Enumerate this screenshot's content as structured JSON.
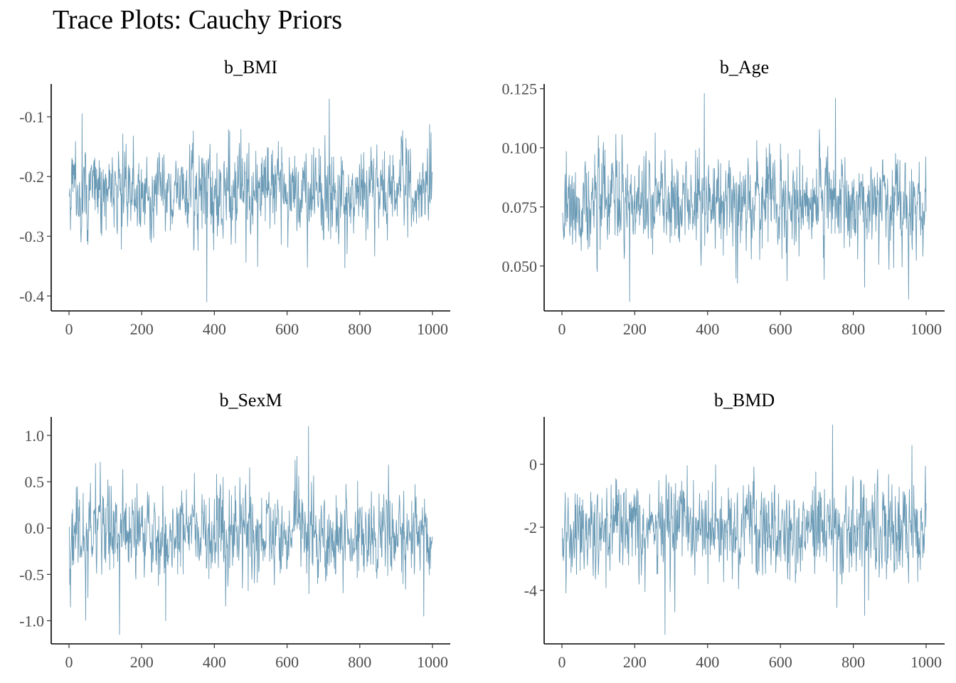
{
  "title": "Trace Plots: Cauchy Priors",
  "line_color": "#6a9ab5",
  "chart_data": [
    {
      "type": "line",
      "title": "b_BMI",
      "xlim": [
        0,
        1000
      ],
      "ylim": [
        -0.425,
        -0.045
      ],
      "x_ticks": [
        0,
        200,
        400,
        600,
        800,
        1000
      ],
      "x_tick_labels": [
        "0",
        "200",
        "400",
        "600",
        "800",
        "1000"
      ],
      "y_ticks": [
        -0.4,
        -0.3,
        -0.2,
        -0.1
      ],
      "y_tick_labels": [
        "-0.4",
        "-0.3",
        "-0.2",
        "-0.1"
      ],
      "n_iterations": 1000,
      "summary": {
        "mean": -0.225,
        "sd": 0.038,
        "min": -0.41,
        "max": -0.07
      },
      "extremes": [
        [
          35,
          -0.095
        ],
        [
          378,
          -0.41
        ],
        [
          715,
          -0.07
        ],
        [
          655,
          -0.352
        ]
      ]
    },
    {
      "type": "line",
      "title": "b_Age",
      "xlim": [
        0,
        1000
      ],
      "ylim": [
        0.031,
        0.127
      ],
      "x_ticks": [
        0,
        200,
        400,
        600,
        800,
        1000
      ],
      "x_tick_labels": [
        "0",
        "200",
        "400",
        "600",
        "800",
        "1000"
      ],
      "y_ticks": [
        0.05,
        0.075,
        0.1,
        0.125
      ],
      "y_tick_labels": [
        "0.050",
        "0.075",
        "0.100",
        "0.125"
      ],
      "n_iterations": 1000,
      "summary": {
        "mean": 0.077,
        "sd": 0.0105,
        "min": 0.035,
        "max": 0.123
      },
      "extremes": [
        [
          390,
          0.123
        ],
        [
          750,
          0.121
        ],
        [
          185,
          0.035
        ],
        [
          830,
          0.041
        ]
      ]
    },
    {
      "type": "line",
      "title": "b_SexM",
      "xlim": [
        0,
        1000
      ],
      "ylim": [
        -1.25,
        1.2
      ],
      "x_ticks": [
        0,
        200,
        400,
        600,
        800,
        1000
      ],
      "x_tick_labels": [
        "0",
        "200",
        "400",
        "600",
        "800",
        "1000"
      ],
      "y_ticks": [
        -1.0,
        -0.5,
        0.0,
        0.5,
        1.0
      ],
      "y_tick_labels": [
        "-1.0",
        "-0.5",
        "0.0",
        "0.5",
        "1.0"
      ],
      "n_iterations": 1000,
      "summary": {
        "mean": -0.05,
        "sd": 0.25,
        "min": -1.15,
        "max": 1.1
      },
      "extremes": [
        [
          658,
          1.1
        ],
        [
          138,
          -1.15
        ],
        [
          265,
          -1.0
        ],
        [
          975,
          -0.95
        ]
      ]
    },
    {
      "type": "line",
      "title": "b_BMD",
      "xlim": [
        0,
        1000
      ],
      "ylim": [
        -5.7,
        1.5
      ],
      "x_ticks": [
        0,
        200,
        400,
        600,
        800,
        1000
      ],
      "x_tick_labels": [
        "0",
        "200",
        "400",
        "600",
        "800",
        "1000"
      ],
      "y_ticks": [
        -4,
        -2,
        0
      ],
      "y_tick_labels": [
        "-4",
        "-2",
        "0"
      ],
      "n_iterations": 1000,
      "summary": {
        "mean": -2.05,
        "sd": 0.75,
        "min": -5.4,
        "max": 1.25
      },
      "extremes": [
        [
          742,
          1.25
        ],
        [
          282,
          -5.4
        ],
        [
          960,
          0.6
        ],
        [
          830,
          -4.8
        ]
      ]
    }
  ]
}
